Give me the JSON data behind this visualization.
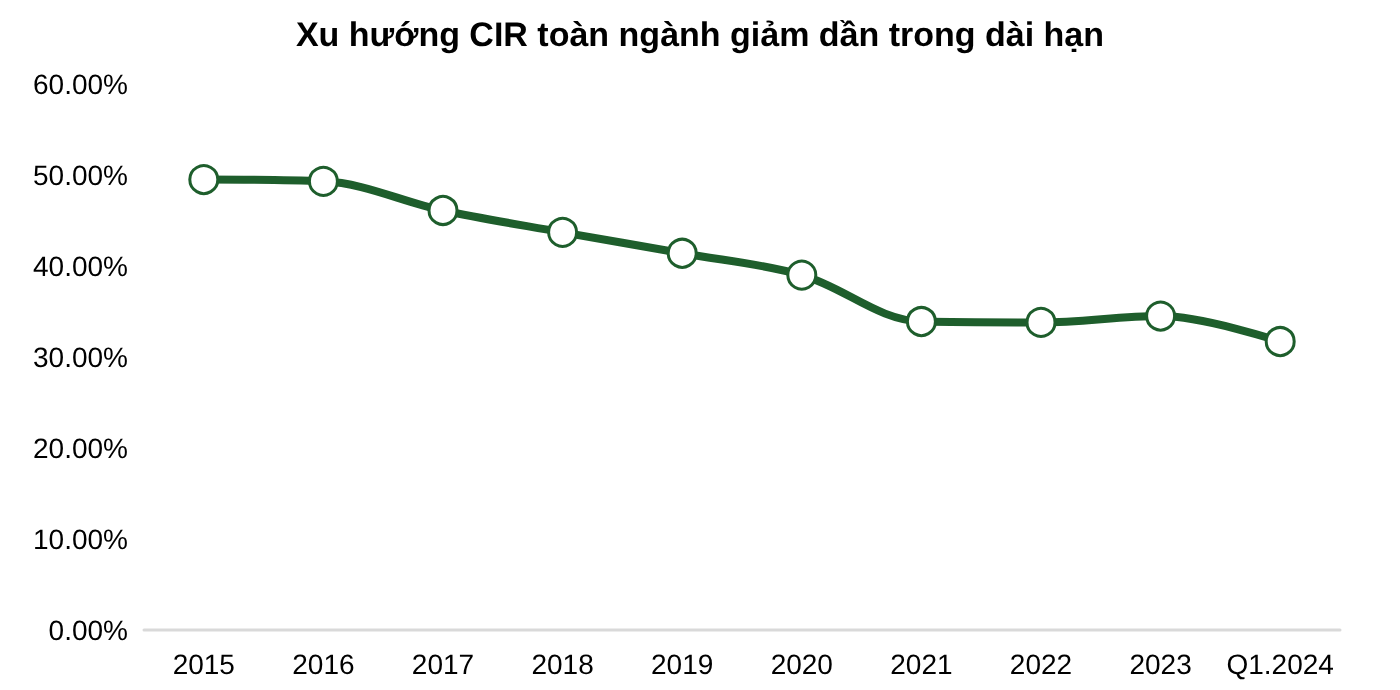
{
  "chart_data": {
    "type": "line",
    "title": "Xu hướng CIR toàn ngành giảm dần trong dài hạn",
    "categories": [
      "2015",
      "2016",
      "2017",
      "2018",
      "2019",
      "2020",
      "2021",
      "2022",
      "2023",
      "Q1.2024"
    ],
    "series": [
      {
        "color": "#1e5e2c",
        "values": [
          49.5,
          49.3,
          46.1,
          43.7,
          41.4,
          39.0,
          33.9,
          33.8,
          34.5,
          31.7
        ]
      }
    ],
    "ylim": [
      0,
      60
    ],
    "yticks": [
      {
        "value": 0,
        "label": "0.00%"
      },
      {
        "value": 10,
        "label": "10.00%"
      },
      {
        "value": 20,
        "label": "20.00%"
      },
      {
        "value": 30,
        "label": "30.00%"
      },
      {
        "value": 40,
        "label": "40.00%"
      },
      {
        "value": 50,
        "label": "50.00%"
      },
      {
        "value": 60,
        "label": "60.00%"
      }
    ],
    "grid": false,
    "marker": "circle",
    "line_style": "solid"
  }
}
